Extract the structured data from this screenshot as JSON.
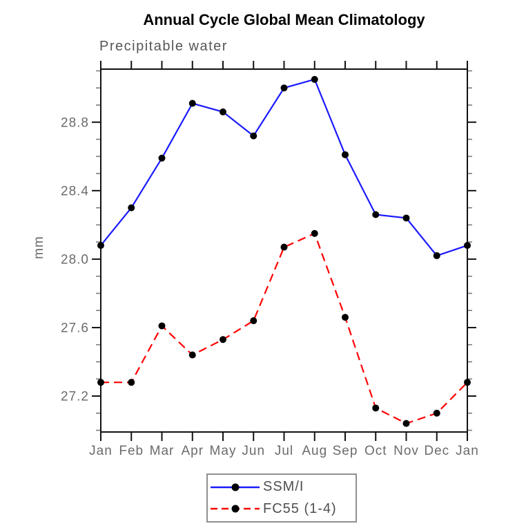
{
  "colors": {
    "axis": "#111111",
    "minor_tick": "#7d7d7d",
    "tick_labels": "#6b6b6b",
    "title": "#000000",
    "subtitle": "#565656",
    "legend_border": "#8f8f8f"
  },
  "chart_data": {
    "type": "line",
    "title": "Annual Cycle Global Mean Climatology",
    "subtitle": "Precipitable water",
    "ylabel": "mm",
    "xlabel": "",
    "categories": [
      "Jan",
      "Feb",
      "Mar",
      "Apr",
      "May",
      "Jun",
      "Jul",
      "Aug",
      "Sep",
      "Oct",
      "Nov",
      "Dec",
      "Jan"
    ],
    "series": [
      {
        "name": "SSM/I",
        "color": "#1a1aff",
        "style": "solid",
        "marker": "circle",
        "marker_color": "#000000",
        "values": [
          28.08,
          28.3,
          28.59,
          28.91,
          28.86,
          28.72,
          29.0,
          29.05,
          28.61,
          28.26,
          28.24,
          28.02,
          28.08
        ]
      },
      {
        "name": "FC55 (1-4)",
        "color": "#ff0000",
        "style": "dashed",
        "marker": "circle",
        "marker_color": "#000000",
        "values": [
          27.28,
          27.28,
          27.61,
          27.44,
          27.53,
          27.64,
          28.07,
          28.15,
          27.66,
          27.13,
          27.04,
          27.1,
          27.28
        ]
      }
    ],
    "ylim": [
      26.99,
      29.11
    ],
    "yticks": [
      27.2,
      27.6,
      28.0,
      28.4,
      28.8
    ],
    "y_minor_step": 0.1,
    "grid": false,
    "legend_position": "bottom-center"
  }
}
